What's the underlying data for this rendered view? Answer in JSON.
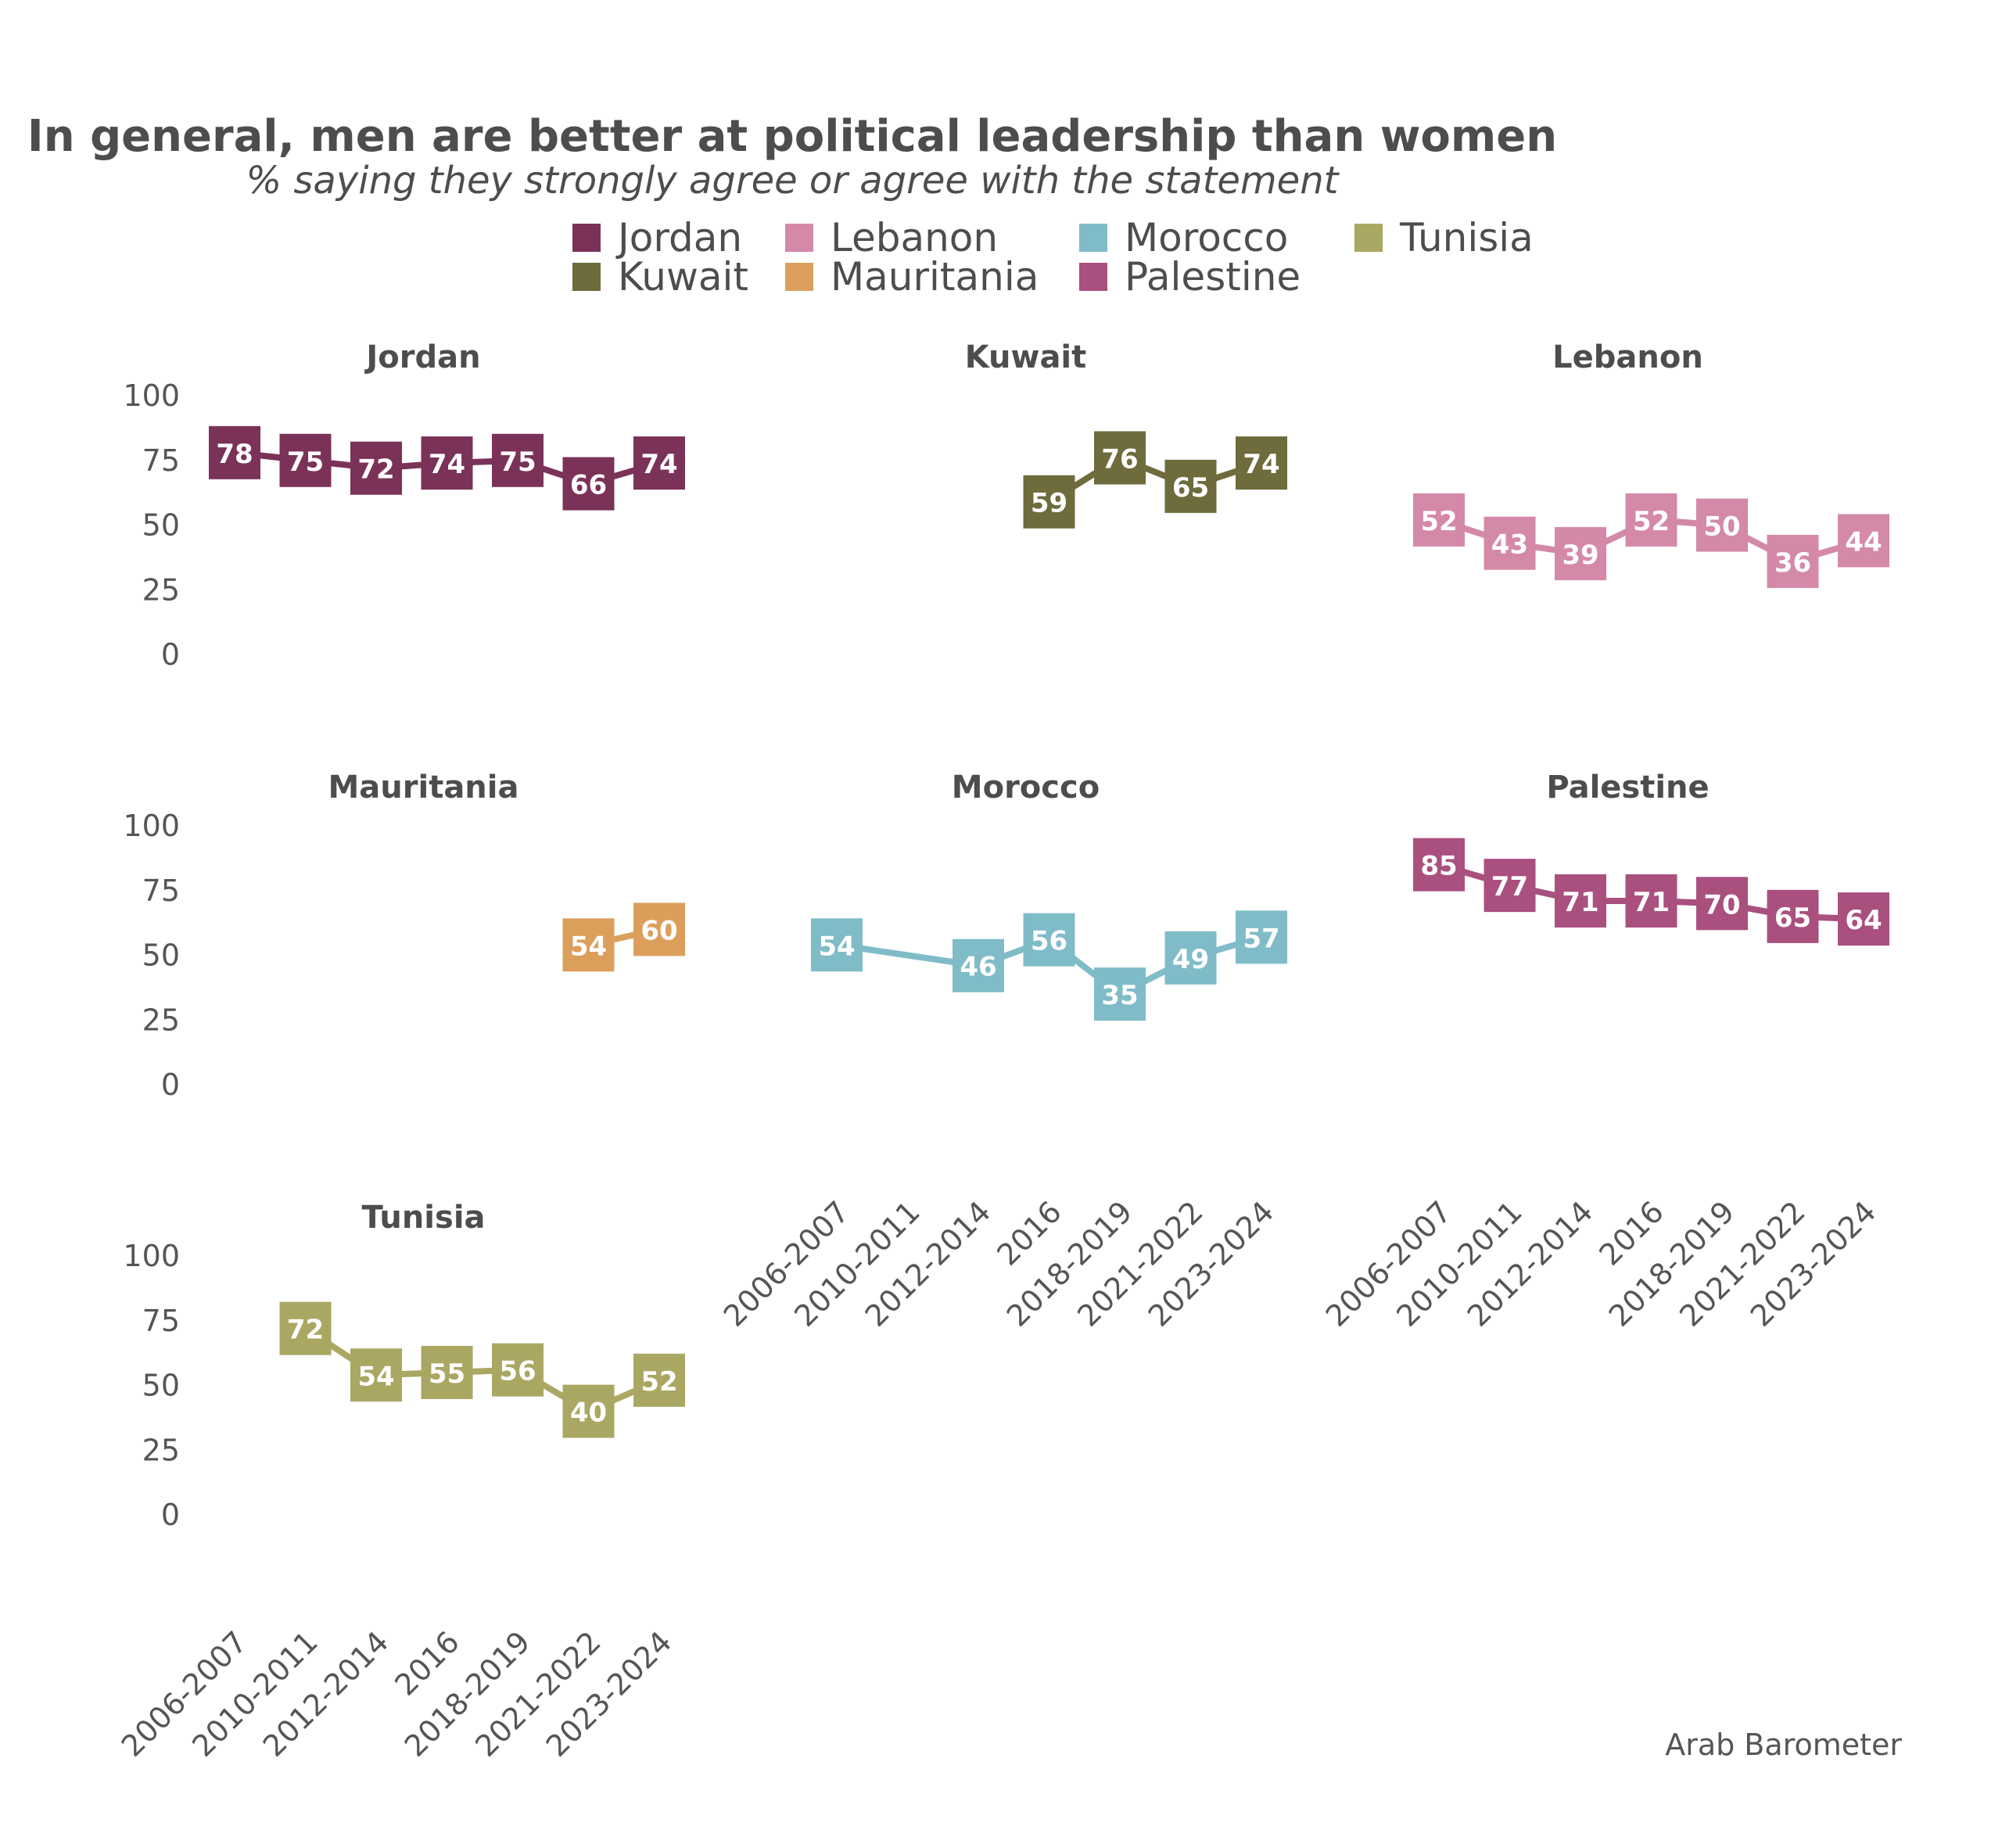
{
  "chart_data": {
    "type": "line",
    "title": "In general, men are better at political leadership than women",
    "subtitle": "% saying they strongly agree or agree with the statement",
    "source": "Arab Barometer",
    "categories": [
      "2006-2007",
      "2010-2011",
      "2012-2014",
      "2016",
      "2018-2019",
      "2021-2022",
      "2023-2024"
    ],
    "ylim": [
      0,
      100
    ],
    "yticks": [
      0,
      25,
      50,
      75,
      100
    ],
    "legend": {
      "placement": "top",
      "entries": [
        "Jordan",
        "Lebanon",
        "Morocco",
        "Tunisia",
        "Kuwait",
        "Mauritania",
        "Palestine"
      ]
    },
    "series": [
      {
        "name": "Jordan",
        "color": "#7b3258",
        "values": [
          78,
          75,
          72,
          74,
          75,
          66,
          74
        ]
      },
      {
        "name": "Kuwait",
        "color": "#6e6b3c",
        "values": [
          null,
          null,
          null,
          59,
          76,
          65,
          74
        ]
      },
      {
        "name": "Lebanon",
        "color": "#d489a9",
        "values": [
          52,
          43,
          39,
          52,
          50,
          36,
          44
        ]
      },
      {
        "name": "Mauritania",
        "color": "#dc9f5b",
        "values": [
          null,
          null,
          null,
          null,
          null,
          54,
          60
        ]
      },
      {
        "name": "Morocco",
        "color": "#7fbcc8",
        "values": [
          54,
          null,
          46,
          56,
          35,
          49,
          57
        ]
      },
      {
        "name": "Palestine",
        "color": "#a9507f",
        "values": [
          85,
          77,
          71,
          71,
          70,
          65,
          64
        ]
      },
      {
        "name": "Tunisia",
        "color": "#aaa763",
        "values": [
          null,
          72,
          54,
          55,
          56,
          40,
          52
        ]
      }
    ]
  }
}
